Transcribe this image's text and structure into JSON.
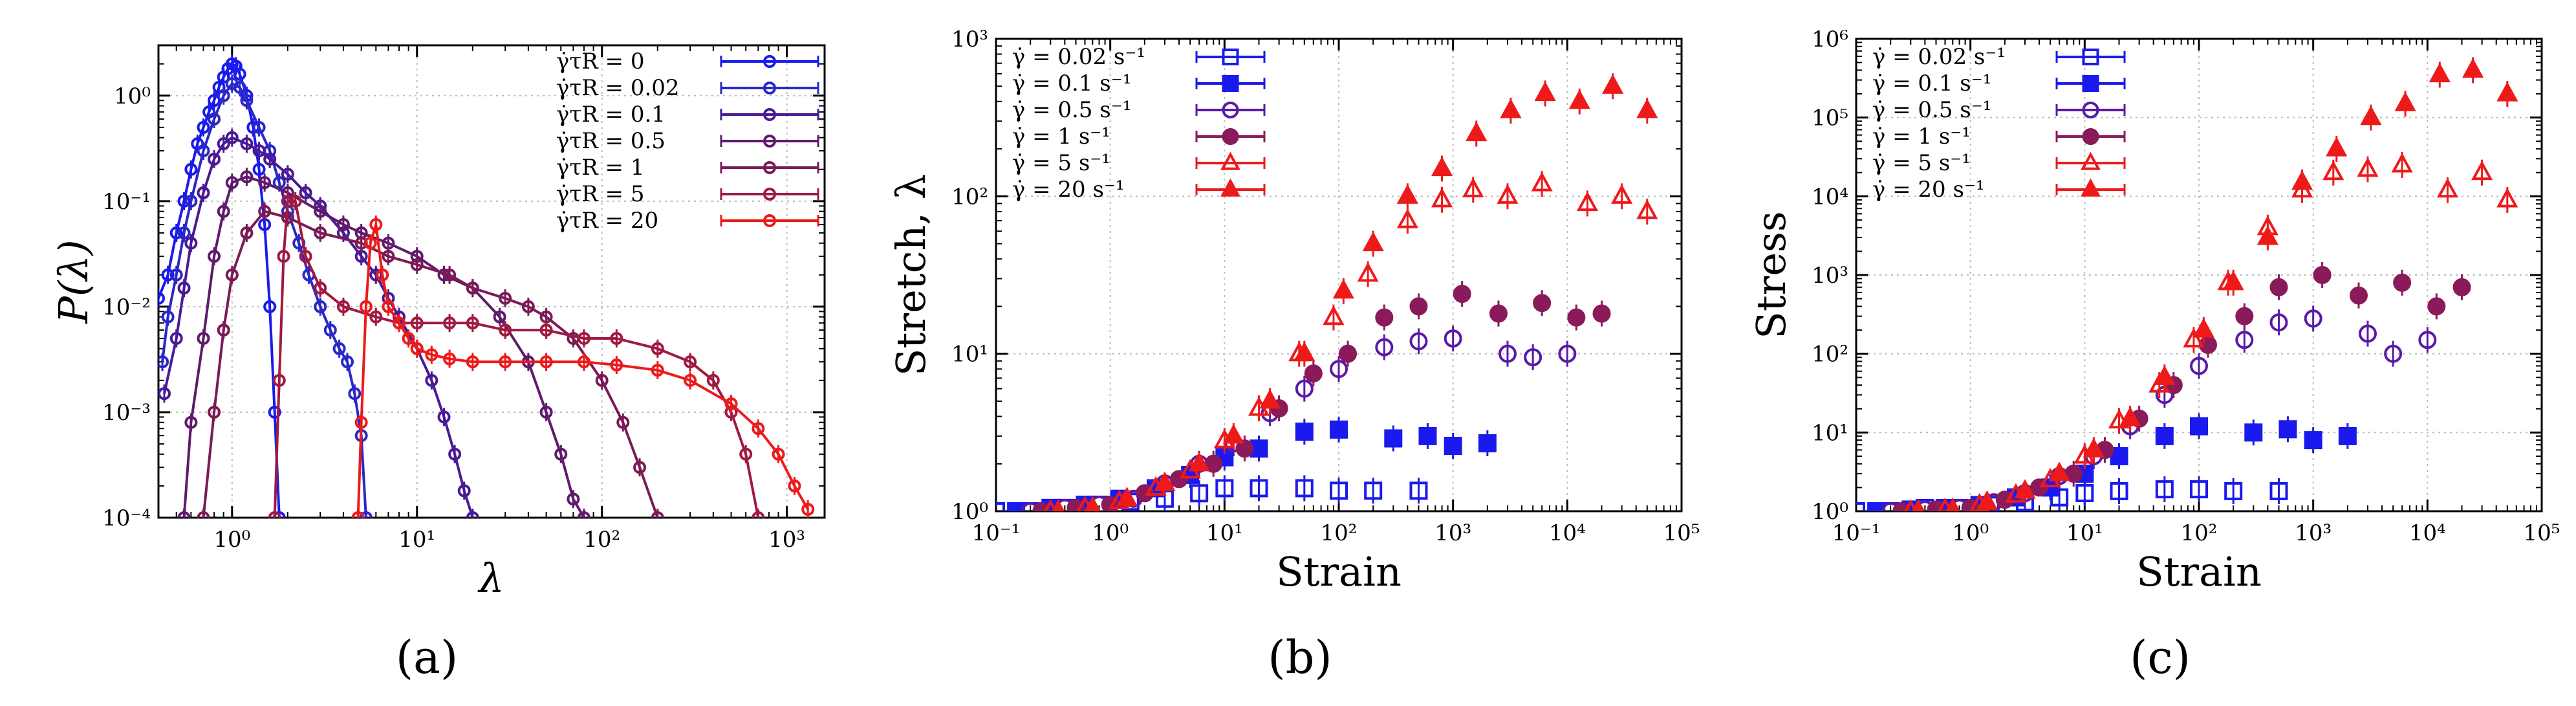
{
  "chart_data": [
    {
      "id": "a",
      "type": "line",
      "panel_label": "a",
      "xscale": "log",
      "yscale": "log",
      "xlim": [
        0.4,
        1600
      ],
      "ylim": [
        0.0001,
        3
      ],
      "xlabel": "λ",
      "ylabel": "P(λ)",
      "xticks": [
        {
          "v": 1,
          "label": "10⁰"
        },
        {
          "v": 10,
          "label": "10¹"
        },
        {
          "v": 100,
          "label": "10²"
        },
        {
          "v": 1000,
          "label": "10³"
        }
      ],
      "yticks": [
        {
          "v": 0.0001,
          "label": "10⁻⁴"
        },
        {
          "v": 0.001,
          "label": "10⁻³"
        },
        {
          "v": 0.01,
          "label": "10⁻²"
        },
        {
          "v": 0.1,
          "label": "10⁻¹"
        },
        {
          "v": 1,
          "label": "10⁰"
        }
      ],
      "grid": true,
      "legend_position": "top-right",
      "series": [
        {
          "name": "γ̇τR = 0",
          "color": "#1a1aee",
          "x": [
            0.4,
            0.45,
            0.5,
            0.55,
            0.6,
            0.65,
            0.7,
            0.75,
            0.8,
            0.85,
            0.9,
            0.95,
            1.0,
            1.05,
            1.1,
            1.2,
            1.3,
            1.4,
            1.5,
            1.6,
            1.7,
            1.8
          ],
          "y": [
            0.012,
            0.02,
            0.05,
            0.1,
            0.2,
            0.35,
            0.5,
            0.7,
            0.9,
            1.2,
            1.5,
            1.8,
            2.0,
            1.9,
            1.6,
            1.0,
            0.5,
            0.2,
            0.06,
            0.01,
            0.001,
            0.0001
          ]
        },
        {
          "name": "γ̇τR = 0.02",
          "color": "#2a28c8",
          "x": [
            0.42,
            0.45,
            0.5,
            0.55,
            0.6,
            0.7,
            0.8,
            0.9,
            1.0,
            1.1,
            1.2,
            1.4,
            1.6,
            1.8,
            2.0,
            2.3,
            2.6,
            3.0,
            3.4,
            3.8,
            4.2,
            4.6,
            5.0,
            5.3
          ],
          "y": [
            0.003,
            0.008,
            0.02,
            0.05,
            0.1,
            0.3,
            0.6,
            1.0,
            1.3,
            1.2,
            0.9,
            0.5,
            0.3,
            0.15,
            0.08,
            0.04,
            0.02,
            0.01,
            0.006,
            0.004,
            0.003,
            0.0015,
            0.0006,
            0.0001
          ]
        },
        {
          "name": "γ̇τR = 0.1",
          "color": "#4a1a96",
          "x": [
            0.43,
            0.5,
            0.55,
            0.6,
            0.7,
            0.8,
            0.9,
            1.0,
            1.2,
            1.4,
            1.6,
            2.0,
            2.5,
            3.0,
            4.0,
            5.0,
            6.0,
            7.0,
            8.0,
            10,
            12,
            14,
            16,
            18,
            20
          ],
          "y": [
            0.0015,
            0.005,
            0.015,
            0.04,
            0.12,
            0.25,
            0.35,
            0.4,
            0.35,
            0.3,
            0.25,
            0.18,
            0.12,
            0.09,
            0.05,
            0.03,
            0.02,
            0.012,
            0.008,
            0.004,
            0.002,
            0.0009,
            0.0004,
            0.00018,
            0.0001
          ]
        },
        {
          "name": "γ̇τR = 0.5",
          "color": "#601a6c",
          "x": [
            0.55,
            0.6,
            0.7,
            0.8,
            0.9,
            1.0,
            1.2,
            1.5,
            2,
            3,
            4,
            5,
            7,
            10,
            14,
            20,
            28,
            40,
            50,
            60,
            70,
            80
          ],
          "y": [
            0.0001,
            0.0008,
            0.005,
            0.03,
            0.08,
            0.15,
            0.17,
            0.15,
            0.12,
            0.08,
            0.06,
            0.05,
            0.04,
            0.03,
            0.02,
            0.015,
            0.008,
            0.003,
            0.001,
            0.0004,
            0.00015,
            0.0001
          ]
        },
        {
          "name": "γ̇τR = 1",
          "color": "#7a1a56",
          "x": [
            0.7,
            0.8,
            0.9,
            1.0,
            1.2,
            1.5,
            2,
            3,
            5,
            7,
            10,
            15,
            20,
            30,
            40,
            50,
            70,
            100,
            130,
            160,
            200
          ],
          "y": [
            0.0001,
            0.001,
            0.006,
            0.02,
            0.05,
            0.08,
            0.07,
            0.05,
            0.04,
            0.03,
            0.025,
            0.02,
            0.015,
            0.012,
            0.01,
            0.008,
            0.005,
            0.002,
            0.0008,
            0.0003,
            0.0001
          ]
        },
        {
          "name": "γ̇τR = 5",
          "color": "#a01a40",
          "x": [
            1.7,
            1.8,
            1.9,
            2.0,
            2.2,
            2.5,
            3,
            4,
            6,
            8,
            10,
            15,
            20,
            30,
            50,
            80,
            120,
            200,
            300,
            400,
            500,
            600,
            700
          ],
          "y": [
            0.0001,
            0.002,
            0.03,
            0.1,
            0.1,
            0.03,
            0.015,
            0.01,
            0.008,
            0.007,
            0.007,
            0.007,
            0.007,
            0.006,
            0.006,
            0.005,
            0.005,
            0.004,
            0.003,
            0.002,
            0.001,
            0.0004,
            0.0001
          ]
        },
        {
          "name": "γ̇τR = 20",
          "color": "#ee1a1a",
          "x": [
            4.8,
            5.0,
            5.3,
            5.6,
            6.0,
            6.5,
            7,
            8,
            9,
            10,
            12,
            15,
            20,
            30,
            50,
            80,
            120,
            200,
            300,
            500,
            700,
            900,
            1100,
            1300
          ],
          "y": [
            0.0001,
            0.0008,
            0.01,
            0.04,
            0.06,
            0.02,
            0.01,
            0.007,
            0.005,
            0.004,
            0.0035,
            0.0032,
            0.003,
            0.003,
            0.003,
            0.003,
            0.0028,
            0.0025,
            0.002,
            0.0012,
            0.0007,
            0.0004,
            0.0002,
            0.00012
          ]
        }
      ]
    },
    {
      "id": "b",
      "type": "scatter",
      "panel_label": "b",
      "xscale": "log",
      "yscale": "log",
      "xlim": [
        0.1,
        100000
      ],
      "ylim": [
        1,
        1000
      ],
      "xlabel": "Strain",
      "ylabel": "Stretch, λ",
      "xticks": [
        {
          "v": 0.1,
          "label": "10⁻¹"
        },
        {
          "v": 1,
          "label": "10⁰"
        },
        {
          "v": 10,
          "label": "10¹"
        },
        {
          "v": 100,
          "label": "10²"
        },
        {
          "v": 1000,
          "label": "10³"
        },
        {
          "v": 10000,
          "label": "10⁴"
        },
        {
          "v": 100000,
          "label": "10⁵"
        }
      ],
      "yticks": [
        {
          "v": 1,
          "label": "10⁰"
        },
        {
          "v": 10,
          "label": "10¹"
        },
        {
          "v": 100,
          "label": "10²"
        },
        {
          "v": 1000,
          "label": "10³"
        }
      ],
      "grid": true,
      "legend_position": "top-left",
      "series": [
        {
          "name": "γ̇ = 0.02 s⁻¹",
          "color": "#1a1aee",
          "marker": "square-open",
          "x": [
            0.1,
            0.2,
            0.4,
            0.8,
            1.5,
            3,
            6,
            10,
            20,
            50,
            100,
            200,
            500
          ],
          "y": [
            1.0,
            1.0,
            1.05,
            1.1,
            1.15,
            1.2,
            1.3,
            1.4,
            1.4,
            1.4,
            1.35,
            1.35,
            1.35
          ]
        },
        {
          "name": "γ̇ = 0.1 s⁻¹",
          "color": "#1a1aee",
          "marker": "square-filled",
          "x": [
            0.15,
            0.3,
            0.6,
            1.2,
            2.5,
            5,
            10,
            20,
            50,
            100,
            300,
            600,
            1000,
            2000
          ],
          "y": [
            1.0,
            1.05,
            1.1,
            1.2,
            1.4,
            1.7,
            2.2,
            2.5,
            3.2,
            3.3,
            2.9,
            3.0,
            2.6,
            2.7
          ]
        },
        {
          "name": "γ̇ = 0.5 s⁻¹",
          "color": "#5a1aa8",
          "marker": "circle-open",
          "x": [
            0.2,
            0.4,
            0.8,
            1.6,
            3,
            6,
            12,
            25,
            50,
            100,
            250,
            500,
            1000,
            3000,
            5000,
            10000
          ],
          "y": [
            1.0,
            1.05,
            1.1,
            1.2,
            1.5,
            2.0,
            2.7,
            4.2,
            6.0,
            8.0,
            11,
            12,
            12.5,
            10,
            9.5,
            10
          ]
        },
        {
          "name": "γ̇ = 1 s⁻¹",
          "color": "#8a1a5a",
          "marker": "circle-filled",
          "x": [
            0.25,
            0.5,
            1,
            2,
            4,
            8,
            15,
            30,
            60,
            120,
            250,
            500,
            1200,
            2500,
            6000,
            12000,
            20000
          ],
          "y": [
            1.0,
            1.05,
            1.1,
            1.3,
            1.6,
            2.0,
            2.5,
            4.5,
            7.5,
            10,
            17,
            20,
            24,
            18,
            21,
            17,
            18
          ]
        },
        {
          "name": "γ̇ = 5 s⁻¹",
          "color": "#ee1a1a",
          "marker": "triangle-open",
          "x": [
            0.3,
            0.6,
            1.2,
            2.5,
            5,
            10,
            20,
            45,
            90,
            180,
            400,
            800,
            1500,
            3000,
            6000,
            15000,
            30000,
            50000
          ],
          "y": [
            1.0,
            1.05,
            1.15,
            1.4,
            1.8,
            2.8,
            4.5,
            10,
            17,
            32,
            70,
            95,
            110,
            100,
            120,
            90,
            100,
            80
          ]
        },
        {
          "name": "γ̇ = 20 s⁻¹",
          "color": "#ee1a1a",
          "marker": "triangle-filled",
          "x": [
            0.35,
            0.7,
            1.4,
            3,
            6,
            12,
            25,
            50,
            110,
            200,
            400,
            800,
            1600,
            3200,
            6400,
            12800,
            25000,
            50000
          ],
          "y": [
            1.0,
            1.05,
            1.2,
            1.5,
            2.0,
            3.0,
            5.0,
            10,
            25,
            50,
            100,
            150,
            250,
            350,
            450,
            400,
            500,
            350
          ]
        }
      ]
    },
    {
      "id": "c",
      "type": "scatter",
      "panel_label": "c",
      "xscale": "log",
      "yscale": "log",
      "xlim": [
        0.1,
        100000
      ],
      "ylim": [
        1,
        1000000
      ],
      "xlabel": "Strain",
      "ylabel": "Stress",
      "xticks": [
        {
          "v": 0.1,
          "label": "10⁻¹"
        },
        {
          "v": 1,
          "label": "10⁰"
        },
        {
          "v": 10,
          "label": "10¹"
        },
        {
          "v": 100,
          "label": "10²"
        },
        {
          "v": 1000,
          "label": "10³"
        },
        {
          "v": 10000,
          "label": "10⁴"
        },
        {
          "v": 100000,
          "label": "10⁵"
        }
      ],
      "yticks": [
        {
          "v": 1,
          "label": "10⁰"
        },
        {
          "v": 10,
          "label": "10¹"
        },
        {
          "v": 100,
          "label": "10²"
        },
        {
          "v": 1000,
          "label": "10³"
        },
        {
          "v": 10000,
          "label": "10⁴"
        },
        {
          "v": 100000,
          "label": "10⁵"
        },
        {
          "v": 1000000,
          "label": "10⁶"
        }
      ],
      "grid": true,
      "legend_position": "top-left",
      "series": [
        {
          "name": "γ̇ = 0.02 s⁻¹",
          "color": "#1a1aee",
          "marker": "square-open",
          "x": [
            0.1,
            0.2,
            0.4,
            0.8,
            1.5,
            3,
            6,
            10,
            20,
            50,
            100,
            200,
            500
          ],
          "y": [
            1.0,
            1.0,
            1.1,
            1.1,
            1.2,
            1.3,
            1.5,
            1.7,
            1.8,
            1.9,
            1.9,
            1.8,
            1.8
          ]
        },
        {
          "name": "γ̇ = 0.1 s⁻¹",
          "color": "#1a1aee",
          "marker": "square-filled",
          "x": [
            0.15,
            0.3,
            0.6,
            1.2,
            2.5,
            5,
            10,
            20,
            50,
            100,
            300,
            600,
            1000,
            2000
          ],
          "y": [
            1.0,
            1.05,
            1.1,
            1.2,
            1.5,
            2.0,
            3.0,
            5.0,
            9.0,
            12,
            10,
            11,
            8,
            9
          ]
        },
        {
          "name": "γ̇ = 0.5 s⁻¹",
          "color": "#5a1aa8",
          "marker": "circle-open",
          "x": [
            0.2,
            0.4,
            0.8,
            1.6,
            3,
            6,
            12,
            25,
            50,
            100,
            250,
            500,
            1000,
            3000,
            5000,
            10000
          ],
          "y": [
            1.0,
            1.05,
            1.1,
            1.3,
            1.7,
            2.8,
            5,
            12,
            30,
            70,
            150,
            250,
            280,
            180,
            100,
            150
          ]
        },
        {
          "name": "γ̇ = 1 s⁻¹",
          "color": "#8a1a5a",
          "marker": "circle-filled",
          "x": [
            0.25,
            0.5,
            1,
            2,
            4,
            8,
            15,
            30,
            60,
            120,
            250,
            500,
            1200,
            2500,
            6000,
            12000,
            20000
          ],
          "y": [
            1.0,
            1.05,
            1.1,
            1.4,
            2.0,
            3.0,
            6,
            15,
            40,
            130,
            300,
            700,
            1000,
            550,
            800,
            400,
            700
          ]
        },
        {
          "name": "γ̇ = 5 s⁻¹",
          "color": "#ee1a1a",
          "marker": "triangle-open",
          "x": [
            0.3,
            0.6,
            1.2,
            2.5,
            5,
            10,
            20,
            45,
            90,
            180,
            400,
            800,
            1500,
            3000,
            6000,
            15000,
            30000,
            50000
          ],
          "y": [
            1.0,
            1.05,
            1.2,
            1.6,
            2.5,
            5,
            14,
            40,
            150,
            800,
            4000,
            12000,
            20000,
            22000,
            25000,
            12000,
            20000,
            9000
          ]
        },
        {
          "name": "γ̇ = 20 s⁻¹",
          "color": "#ee1a1a",
          "marker": "triangle-filled",
          "x": [
            0.35,
            0.7,
            1.4,
            3,
            6,
            12,
            25,
            50,
            110,
            200,
            400,
            800,
            1600,
            3200,
            6400,
            12800,
            25000,
            50000
          ],
          "y": [
            1.0,
            1.05,
            1.3,
            1.8,
            3.0,
            6.0,
            15,
            50,
            200,
            800,
            3000,
            15000,
            40000,
            100000,
            150000,
            350000,
            400000,
            200000
          ]
        }
      ]
    }
  ],
  "panel_labels": [
    "(a)",
    "(b)",
    "(c)"
  ]
}
